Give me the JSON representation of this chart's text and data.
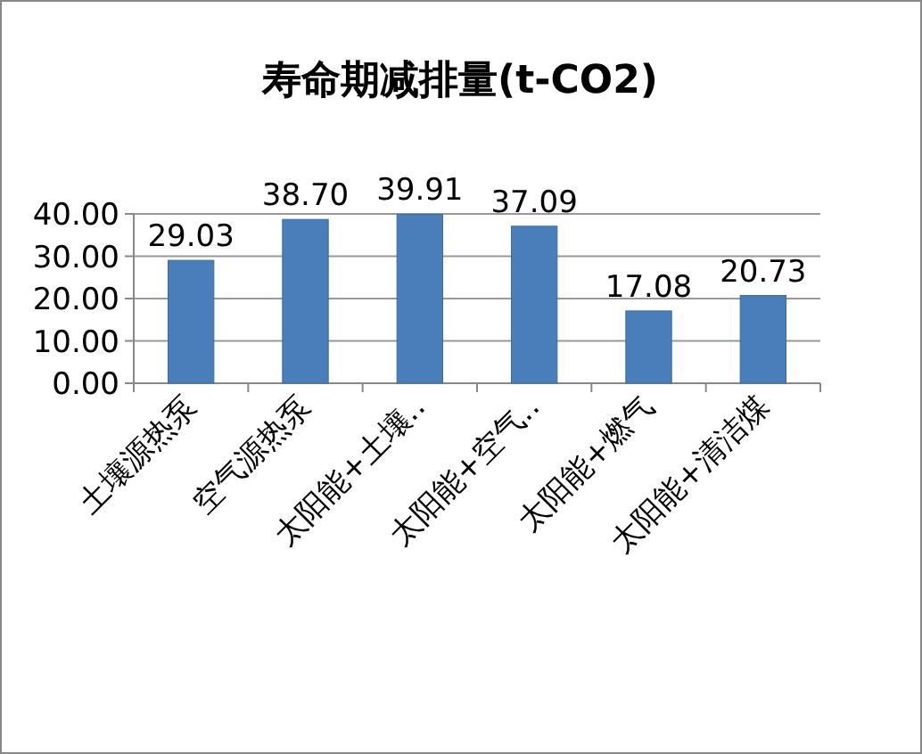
{
  "chart_data": {
    "type": "bar",
    "title": "寿命期减排量(t-CO2)",
    "categories": [
      "土壤源热泵",
      "空气源热泵",
      "太阳能+土壤‥",
      "太阳能+空气‥",
      "太阳能+燃气",
      "太阳能+清洁煤"
    ],
    "values": [
      29.03,
      38.7,
      39.91,
      37.09,
      17.08,
      20.73
    ],
    "color": "#4a7ebb",
    "ylim": [
      0,
      40
    ],
    "yticks": [
      {
        "value": 0,
        "label": "0.00"
      },
      {
        "value": 10,
        "label": "10.00"
      },
      {
        "value": 20,
        "label": "20.00"
      },
      {
        "value": 30,
        "label": "30.00"
      },
      {
        "value": 40,
        "label": "40.00"
      }
    ],
    "value_labels": [
      "29.03",
      "38.70",
      "39.91",
      "37.09",
      "17.08",
      "20.73"
    ],
    "grid": true
  }
}
